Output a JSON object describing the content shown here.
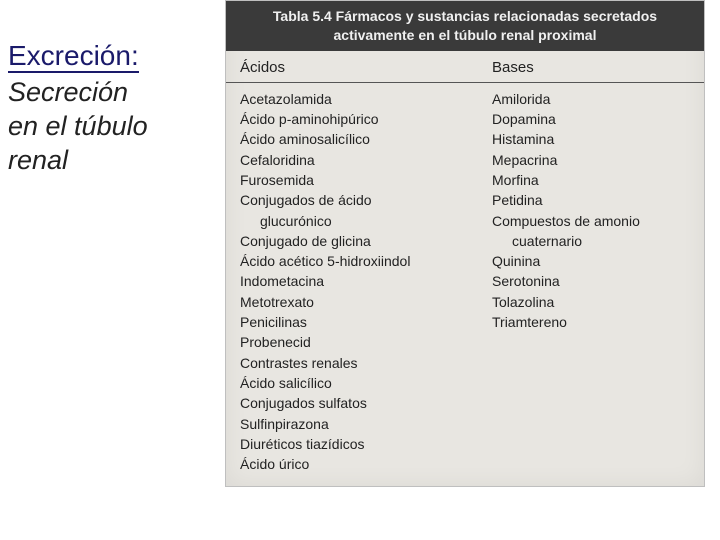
{
  "sideTitle": {
    "line1": "Excreción:",
    "line2": "Secreción",
    "line3": "en el túbulo",
    "line4": "renal"
  },
  "table": {
    "titleLine1": "Tabla 5.4  Fármacos y sustancias relacionadas secretados",
    "titleLine2": "activamente en el túbulo renal proximal",
    "colHeaderA": "Ácidos",
    "colHeaderB": "Bases",
    "acidos": [
      {
        "text": "Acetazolamida",
        "indent": false
      },
      {
        "text": "Ácido p-aminohipúrico",
        "indent": false
      },
      {
        "text": "Ácido aminosalicílico",
        "indent": false
      },
      {
        "text": "Cefaloridina",
        "indent": false
      },
      {
        "text": "Furosemida",
        "indent": false
      },
      {
        "text": "Conjugados de ácido",
        "indent": false
      },
      {
        "text": "glucurónico",
        "indent": true
      },
      {
        "text": "Conjugado de glicina",
        "indent": false
      },
      {
        "text": "Ácido acético 5-hidroxiindol",
        "indent": false
      },
      {
        "text": "Indometacina",
        "indent": false
      },
      {
        "text": "Metotrexato",
        "indent": false
      },
      {
        "text": "Penicilinas",
        "indent": false
      },
      {
        "text": "Probenecid",
        "indent": false
      },
      {
        "text": "Contrastes renales",
        "indent": false
      },
      {
        "text": "Ácido salicílico",
        "indent": false
      },
      {
        "text": "Conjugados sulfatos",
        "indent": false
      },
      {
        "text": "Sulfinpirazona",
        "indent": false
      },
      {
        "text": "Diuréticos tiazídicos",
        "indent": false
      },
      {
        "text": "Ácido úrico",
        "indent": false
      }
    ],
    "bases": [
      {
        "text": "Amilorida",
        "indent": false
      },
      {
        "text": "Dopamina",
        "indent": false
      },
      {
        "text": "Histamina",
        "indent": false
      },
      {
        "text": "Mepacrina",
        "indent": false
      },
      {
        "text": "Morfina",
        "indent": false
      },
      {
        "text": "Petidina",
        "indent": false
      },
      {
        "text": "Compuestos de amonio",
        "indent": false
      },
      {
        "text": "cuaternario",
        "indent": true
      },
      {
        "text": "Quinina",
        "indent": false
      },
      {
        "text": "Serotonina",
        "indent": false
      },
      {
        "text": "Tolazolina",
        "indent": false
      },
      {
        "text": "Triamtereno",
        "indent": false
      }
    ]
  },
  "colors": {
    "headerBg": "#3a3a3a",
    "headerText": "#f0f0f0",
    "scanBg": "#e8e6e1",
    "titleBlue": "#1a1a6a"
  }
}
